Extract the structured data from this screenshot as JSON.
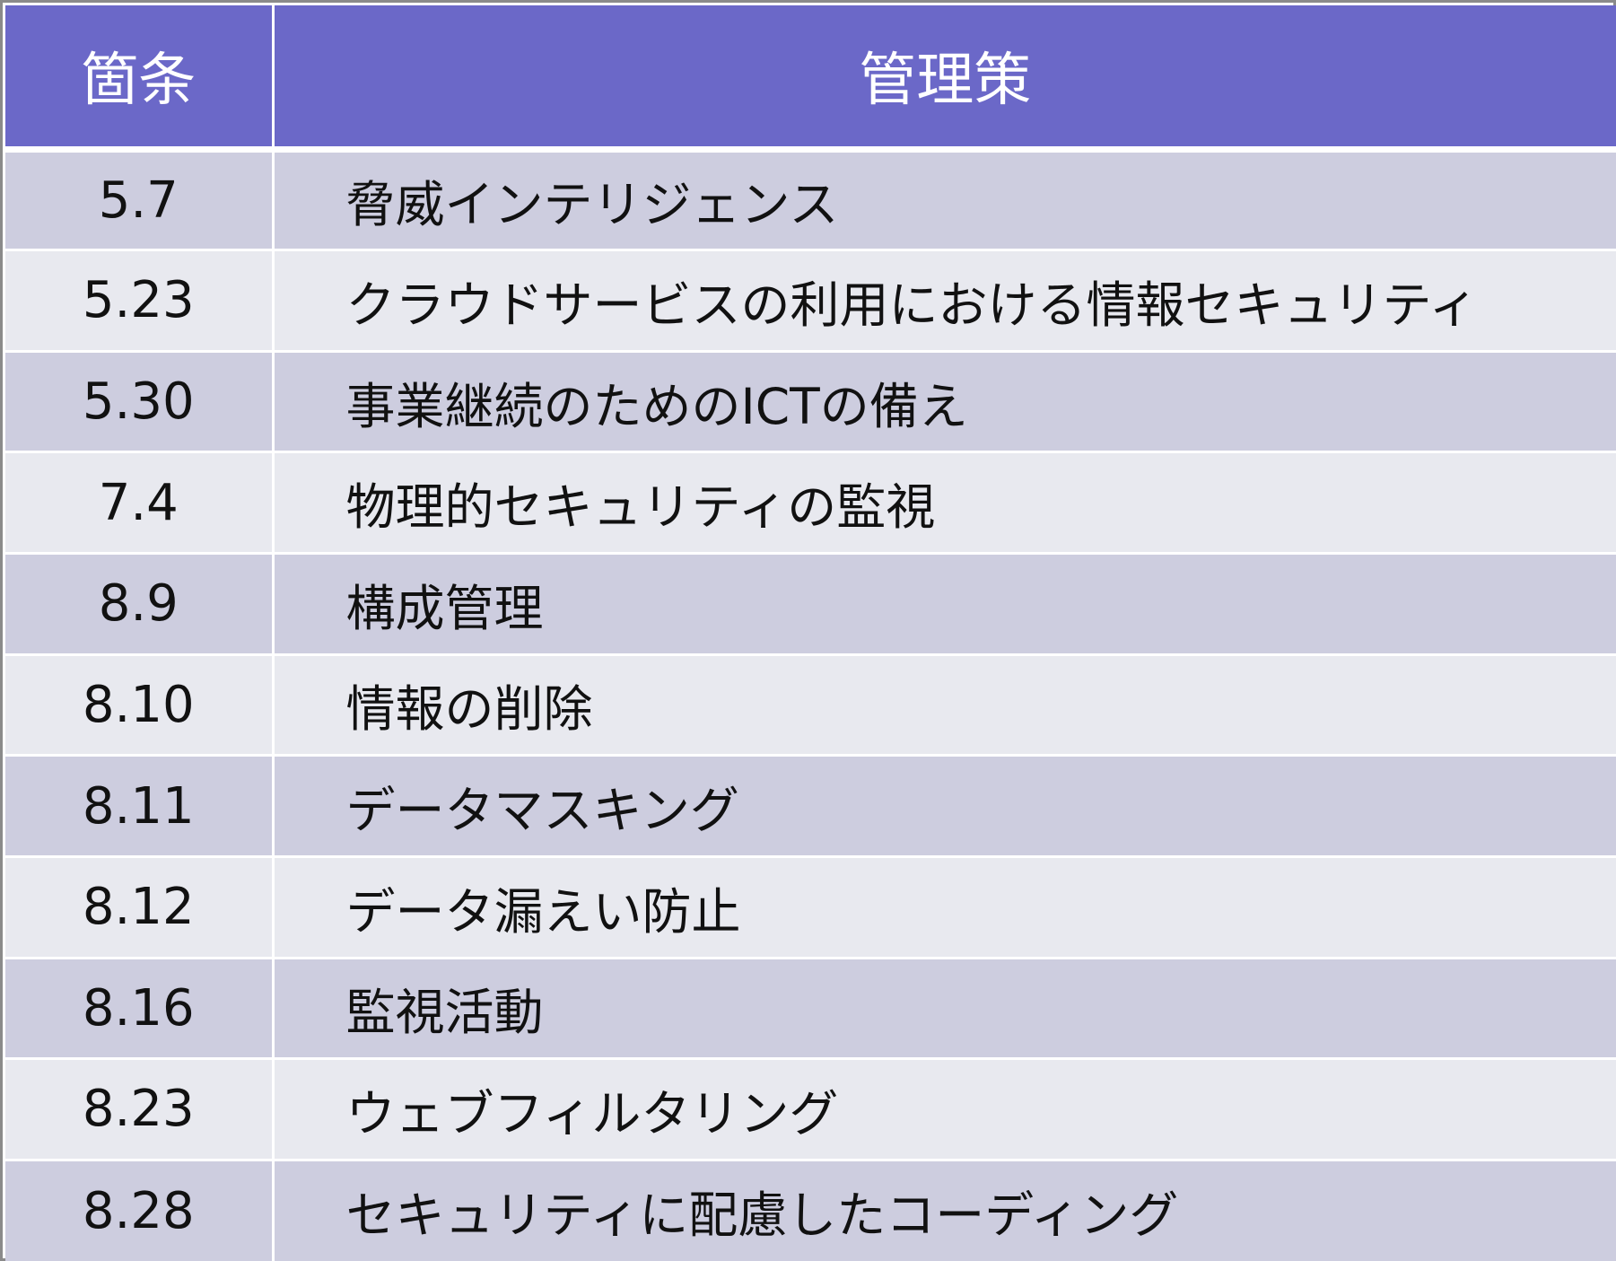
{
  "header": {
    "clause_label": "箇条",
    "control_label": "管理策"
  },
  "rows": [
    {
      "clause": "5.7",
      "control": "脅威インテリジェンス"
    },
    {
      "clause": "5.23",
      "control": "クラウドサービスの利用における情報セキュリティ"
    },
    {
      "clause": "5.30",
      "control": "事業継続のためのICTの備え"
    },
    {
      "clause": "7.4",
      "control": "物理的セキュリティの監視"
    },
    {
      "clause": "8.9",
      "control": "構成管理"
    },
    {
      "clause": "8.10",
      "control": "情報の削除"
    },
    {
      "clause": "8.11",
      "control": "データマスキング"
    },
    {
      "clause": "8.12",
      "control": "データ漏えい防止"
    },
    {
      "clause": "8.16",
      "control": "監視活動"
    },
    {
      "clause": "8.23",
      "control": "ウェブフィルタリング"
    },
    {
      "clause": "8.28",
      "control": "セキュリティに配慮したコーディング"
    }
  ],
  "colors": {
    "header_bg": "#6b68c8",
    "row_odd_bg": "#cdcddf",
    "row_even_bg": "#e8e9ef",
    "border": "#8a8a8a"
  }
}
